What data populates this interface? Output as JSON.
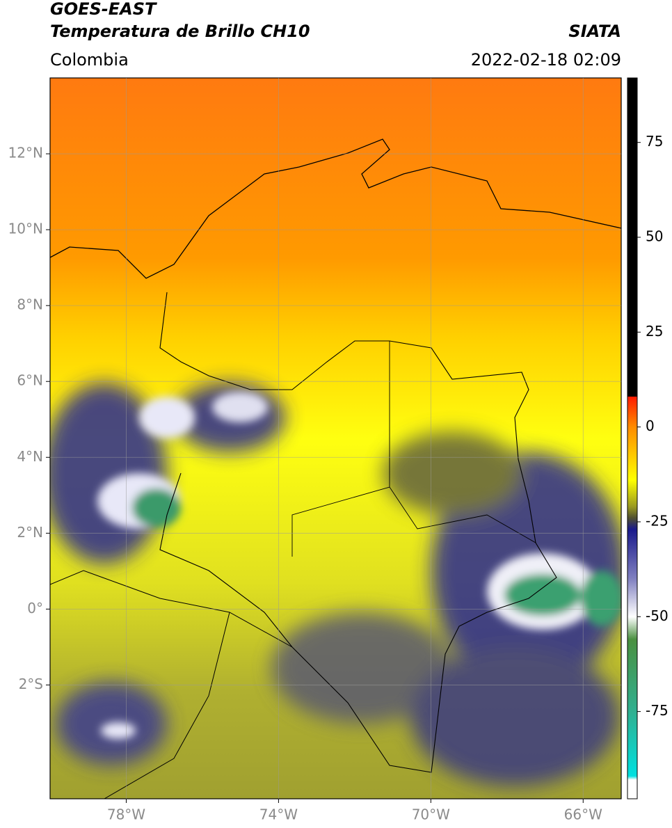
{
  "map": {
    "title": "GOES-EAST",
    "subtitle": "Temperatura de Brillo CH10",
    "source": "SIATA",
    "region": "Colombia",
    "datetime": "2022-02-18 02:09",
    "xlim": [
      -80,
      -65
    ],
    "ylim": [
      -5,
      14
    ],
    "xticks": [
      {
        "value": -78,
        "label": "78°W"
      },
      {
        "value": -74,
        "label": "74°W"
      },
      {
        "value": -70,
        "label": "70°W"
      },
      {
        "value": -66,
        "label": "66°W"
      }
    ],
    "yticks": [
      {
        "value": 12,
        "label": "12°N"
      },
      {
        "value": 10,
        "label": "10°N"
      },
      {
        "value": 8,
        "label": "8°N"
      },
      {
        "value": 6,
        "label": "6°N"
      },
      {
        "value": 4,
        "label": "4°N"
      },
      {
        "value": 2,
        "label": "2°N"
      },
      {
        "value": 0,
        "label": "0°"
      },
      {
        "value": -2,
        "label": "2°S"
      }
    ],
    "grid": true,
    "colorbar": {
      "clim": [
        -98,
        92
      ],
      "ticks": [
        75,
        50,
        25,
        0,
        -25,
        -50,
        -75
      ],
      "colormap": [
        [
          92,
          "#000000"
        ],
        [
          8,
          "#000000"
        ],
        [
          8,
          "#ff1a00"
        ],
        [
          0,
          "#ff8c00"
        ],
        [
          -14,
          "#ffff00"
        ],
        [
          -21,
          "#9a9a20"
        ],
        [
          -24,
          "#505030"
        ],
        [
          -27,
          "#1a1a8c"
        ],
        [
          -40,
          "#8080c0"
        ],
        [
          -50,
          "#ffffff"
        ],
        [
          -56,
          "#4a9040"
        ],
        [
          -75,
          "#30b090"
        ],
        [
          -92,
          "#00e0e0"
        ],
        [
          -93,
          "#ffffff"
        ],
        [
          -98,
          "#ffffff"
        ]
      ]
    }
  }
}
